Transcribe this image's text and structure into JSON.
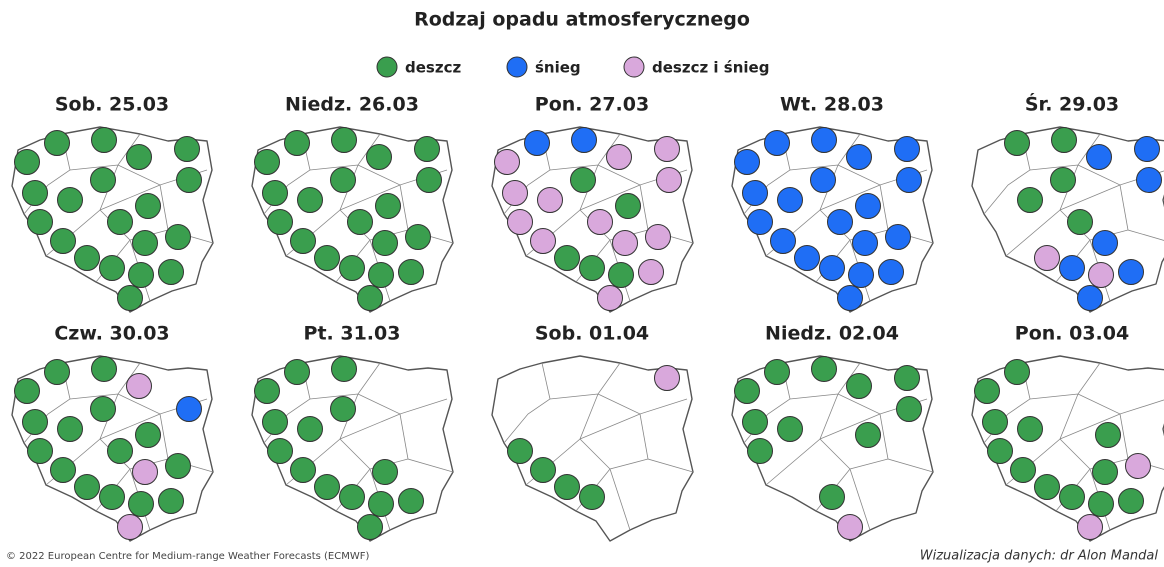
{
  "title": "Rodzaj opadu atmosferycznego",
  "legend": [
    {
      "label": "deszcz",
      "color": "#3a9e4e"
    },
    {
      "label": "śnieg",
      "color": "#1f6ef5"
    },
    {
      "label": "deszcz i śnieg",
      "color": "#d9a8dc"
    }
  ],
  "maps": [
    {
      "label": "Sob. 25.03",
      "stations": [
        0,
        0,
        0,
        0,
        0,
        0,
        0,
        0,
        0,
        0,
        0,
        0,
        0,
        0,
        0,
        0,
        0,
        0,
        0,
        0
      ]
    },
    {
      "label": "Niedz. 26.03",
      "stations": [
        0,
        0,
        0,
        0,
        0,
        0,
        0,
        0,
        0,
        0,
        0,
        0,
        0,
        0,
        0,
        0,
        0,
        0,
        0,
        0
      ]
    },
    {
      "label": "Pon. 27.03",
      "stations": [
        1,
        1,
        2,
        2,
        2,
        2,
        0,
        2,
        2,
        0,
        2,
        2,
        2,
        2,
        2,
        0,
        0,
        0,
        2,
        2
      ]
    },
    {
      "label": "Wt. 28.03",
      "stations": [
        1,
        1,
        1,
        1,
        1,
        1,
        1,
        1,
        1,
        1,
        1,
        1,
        1,
        1,
        1,
        1,
        1,
        1,
        1,
        1
      ]
    },
    {
      "label": "Śr. 29.03",
      "stations": [
        0,
        0,
        null,
        1,
        1,
        null,
        0,
        1,
        0,
        null,
        null,
        0,
        null,
        null,
        1,
        2,
        1,
        2,
        1,
        1
      ]
    },
    {
      "label": "Czw. 30.03",
      "stations": [
        0,
        0,
        0,
        2,
        null,
        0,
        0,
        1,
        0,
        0,
        0,
        0,
        0,
        0,
        2,
        0,
        0,
        0,
        0,
        2
      ]
    },
    {
      "label": "Pt. 31.03",
      "stations": [
        0,
        0,
        0,
        null,
        null,
        0,
        0,
        null,
        0,
        null,
        0,
        null,
        null,
        0,
        0,
        0,
        0,
        0,
        0,
        0
      ]
    },
    {
      "label": "Sob. 01.04",
      "stations": [
        null,
        null,
        null,
        null,
        2,
        null,
        null,
        null,
        null,
        null,
        0,
        null,
        null,
        0,
        null,
        0,
        0,
        null,
        null,
        null
      ]
    },
    {
      "label": "Niedz. 02.04",
      "stations": [
        0,
        0,
        0,
        0,
        0,
        0,
        null,
        0,
        0,
        0,
        0,
        null,
        null,
        null,
        null,
        null,
        0,
        null,
        null,
        2
      ]
    },
    {
      "label": "Pon. 03.04",
      "stations": [
        0,
        null,
        0,
        null,
        null,
        0,
        null,
        null,
        0,
        0,
        0,
        null,
        2,
        0,
        0,
        0,
        0,
        0,
        0,
        2
      ]
    }
  ],
  "footer": {
    "source": "© 2022 European Centre for Medium-range Weather Forecasts (ECMWF)",
    "credit": "Wizualizacja danych: dr Alon Mandal"
  }
}
